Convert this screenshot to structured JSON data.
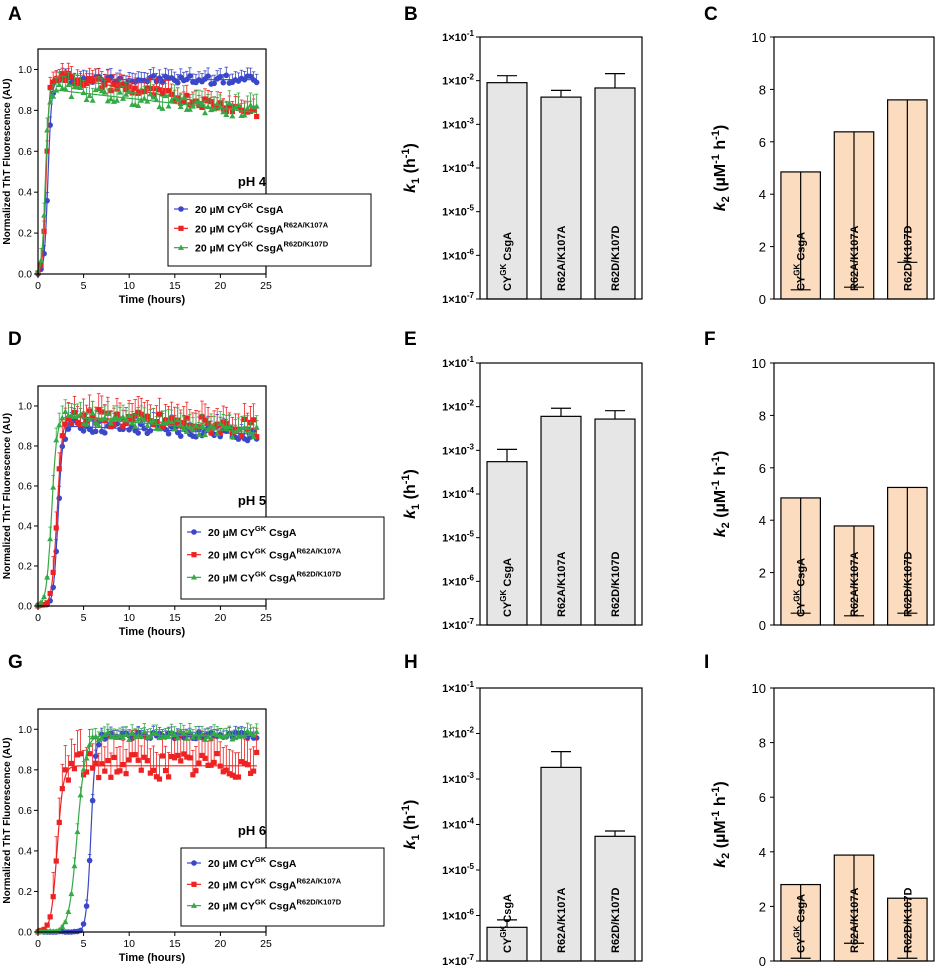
{
  "figure": {
    "panel_letters": [
      "A",
      "B",
      "C",
      "D",
      "E",
      "F",
      "G",
      "H",
      "I"
    ],
    "colors": {
      "series1": "#3a47c8",
      "series2": "#ee2222",
      "series3": "#33aa44",
      "k1_bar": "#e6e6e6",
      "k2_bar": "#fbdcbf",
      "axis": "#000000"
    }
  },
  "legend_entries": [
    {
      "label": "20 µM CY",
      "sup1": "GK",
      "mid": " CsgA",
      "sup2": ""
    },
    {
      "label": "20 µM CY",
      "sup1": "GK",
      "mid": " CsgA",
      "sup2": "R62A/K107A"
    },
    {
      "label": "20 µM CY",
      "sup1": "GK",
      "mid": " CsgA",
      "sup2": "R62D/K107D"
    }
  ],
  "bar_label_parts": {
    "cy": "CY",
    "gk": "GK",
    "csga": " CsgA",
    "r62a": "R62A/K107A",
    "r62d": "R62D/K107D"
  },
  "k1_axis": {
    "label": "k",
    "sub": "1",
    "unit": " (h",
    "exp": "-1",
    "close": ")",
    "ticks": [
      "1×10",
      "1×10",
      "1×10",
      "1×10",
      "1×10",
      "1×10",
      "1×10"
    ],
    "tick_exps": [
      "-1",
      "-2",
      "-3",
      "-4",
      "-5",
      "-6",
      "-7"
    ]
  },
  "k2_axis": {
    "label": "k",
    "sub": "2",
    "unit": " (µM",
    "exp1": "-1",
    "mid": " h",
    "exp2": "-1",
    "close": ")",
    "ticks": [
      "10",
      "8",
      "6",
      "4",
      "2",
      "0"
    ]
  },
  "kin_axis": {
    "ylabel": "Normalized ThT Fluorescence (AU)",
    "xlabel": "Time (hours)",
    "xticks": [
      "0",
      "5",
      "10",
      "15",
      "20",
      "25"
    ],
    "yticks": [
      "0.0",
      "0.2",
      "0.4",
      "0.6",
      "0.8",
      "1.0"
    ]
  },
  "chart_data": [
    {
      "panel": "A",
      "type": "line",
      "title": "pH 4",
      "xlabel": "Time (hours)",
      "ylabel": "Normalized ThT Fluorescence (AU)",
      "xlim": [
        0,
        25
      ],
      "ylim": [
        0,
        1.1
      ],
      "series": [
        {
          "name": "20 µM CYGK CsgA",
          "t_half": 1.1,
          "k": 5.0,
          "plateau": 0.95,
          "drift": 0.0,
          "err": 0.04
        },
        {
          "name": "20 µM CYGK CsgA R62A/K107A",
          "t_half": 0.9,
          "k": 5.5,
          "plateau": 0.97,
          "drift": -0.008,
          "err": 0.05
        },
        {
          "name": "20 µM CYGK CsgA R62D/K107D",
          "t_half": 0.8,
          "k": 5.5,
          "plateau": 0.9,
          "drift": -0.005,
          "err": 0.06
        }
      ]
    },
    {
      "panel": "B",
      "type": "bar",
      "scale": "log",
      "ylim": [
        1e-07,
        0.1
      ],
      "categories": [
        "CYGK CsgA",
        "R62A/K107A",
        "R62D/K107D"
      ],
      "values": [
        0.009,
        0.0042,
        0.0068
      ],
      "errors": [
        0.013,
        0.006,
        0.0145
      ]
    },
    {
      "panel": "C",
      "type": "bar",
      "ylim": [
        0,
        10
      ],
      "categories": [
        "CYGK CsgA",
        "R62A/K107A",
        "R62D/K107D"
      ],
      "values": [
        4.85,
        6.38,
        7.6
      ],
      "errors": [
        0.35,
        0.45,
        1.4
      ]
    },
    {
      "panel": "D",
      "type": "line",
      "title": "pH 5",
      "xlabel": "Time (hours)",
      "ylabel": "Normalized ThT Fluorescence (AU)",
      "xlim": [
        0,
        25
      ],
      "ylim": [
        0,
        1.1
      ],
      "series": [
        {
          "name": "20 µM CYGK CsgA",
          "t_half": 2.2,
          "k": 4.0,
          "plateau": 0.9,
          "drift": -0.002,
          "err": 0.06
        },
        {
          "name": "20 µM CYGK CsgA R62A/K107A",
          "t_half": 2.1,
          "k": 3.5,
          "plateau": 0.95,
          "drift": -0.003,
          "err": 0.08
        },
        {
          "name": "20 µM CYGK CsgA R62D/K107D",
          "t_half": 1.5,
          "k": 3.5,
          "plateau": 0.95,
          "drift": -0.004,
          "err": 0.06
        }
      ]
    },
    {
      "panel": "E",
      "type": "bar",
      "scale": "log",
      "ylim": [
        1e-07,
        0.1
      ],
      "categories": [
        "CYGK CsgA",
        "R62A/K107A",
        "R62D/K107D"
      ],
      "values": [
        0.00055,
        0.006,
        0.0052
      ],
      "errors": [
        0.00105,
        0.0092,
        0.0081
      ]
    },
    {
      "panel": "F",
      "type": "bar",
      "ylim": [
        0,
        10
      ],
      "categories": [
        "CYGK CsgA",
        "R62A/K107A",
        "R62D/K107D"
      ],
      "values": [
        4.85,
        3.78,
        5.25
      ],
      "errors": [
        0.45,
        0.35,
        0.45
      ]
    },
    {
      "panel": "G",
      "type": "line",
      "title": "pH 6",
      "xlabel": "Time (hours)",
      "ylabel": "Normalized ThT Fluorescence (AU)",
      "xlim": [
        0,
        25
      ],
      "ylim": [
        0,
        1.1
      ],
      "series": [
        {
          "name": "20 µM CYGK CsgA",
          "t_half": 5.8,
          "k": 4.0,
          "plateau": 0.97,
          "drift": 0.0,
          "err": 0.03
        },
        {
          "name": "20 µM CYGK CsgA R62A/K107A",
          "t_half": 2.1,
          "k": 3.0,
          "plateau": 0.82,
          "drift": 0.0,
          "err": 0.12
        },
        {
          "name": "20 µM CYGK CsgA R62D/K107D",
          "t_half": 4.3,
          "k": 2.2,
          "plateau": 0.97,
          "drift": 0.0,
          "err": 0.04
        }
      ]
    },
    {
      "panel": "H",
      "type": "bar",
      "scale": "log",
      "ylim": [
        1e-07,
        0.1
      ],
      "categories": [
        "CYGK CsgA",
        "R62A/K107A",
        "R62D/K107D"
      ],
      "values": [
        5.5e-07,
        0.0018,
        5.5e-05
      ],
      "errors": [
        8e-07,
        0.004,
        7.2e-05
      ]
    },
    {
      "panel": "I",
      "type": "bar",
      "ylim": [
        0,
        10
      ],
      "categories": [
        "CYGK CsgA",
        "R62A/K107A",
        "R62D/K107D"
      ],
      "values": [
        2.8,
        3.88,
        2.3
      ],
      "errors": [
        0.1,
        0.65,
        0.1
      ]
    }
  ]
}
